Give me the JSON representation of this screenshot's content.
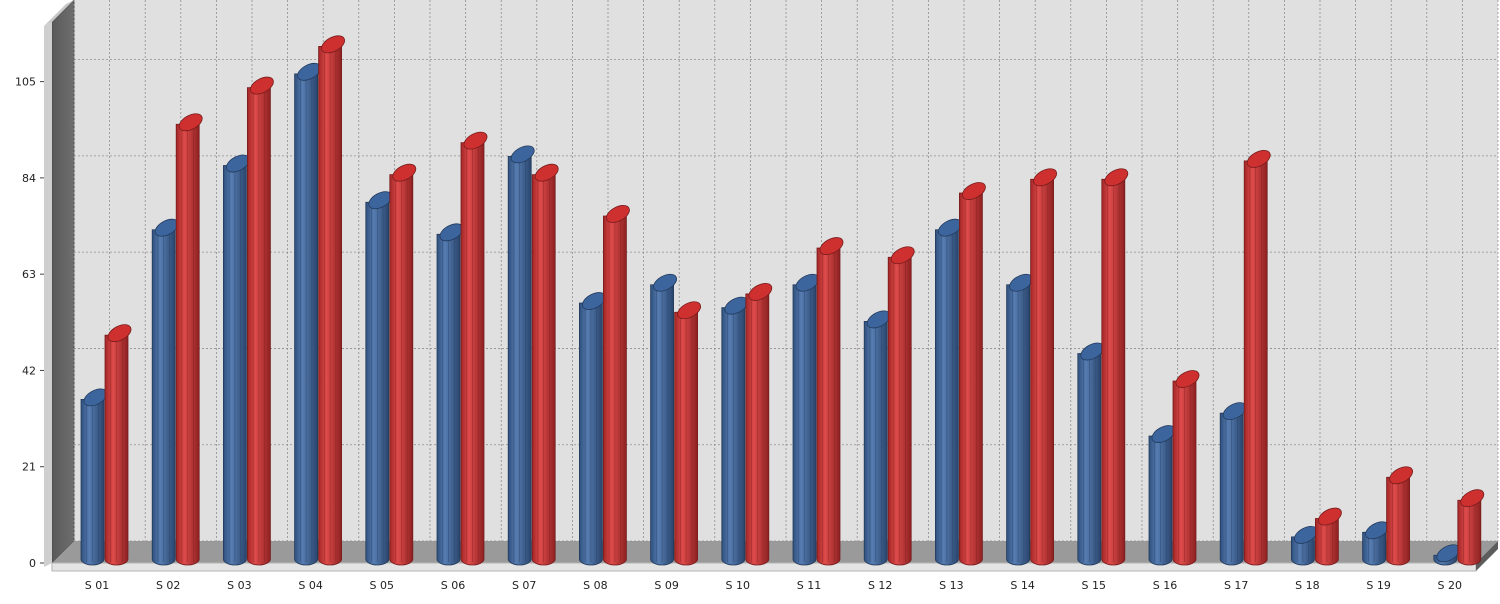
{
  "chart_data": {
    "type": "bar",
    "style": "3d-cylinder",
    "categories": [
      "S 01",
      "S 02",
      "S 03",
      "S 04",
      "S 05",
      "S 06",
      "S 07",
      "S 08",
      "S 09",
      "S 10",
      "S 11",
      "S 12",
      "S 13",
      "S 14",
      "S 15",
      "S 16",
      "S 17",
      "S 18",
      "S 19",
      "S 20"
    ],
    "series": [
      {
        "color": "#3f6aa6",
        "values": [
          37,
          74,
          88,
          108,
          80,
          73,
          90,
          58,
          62,
          57,
          62,
          54,
          74,
          62,
          47,
          29,
          34,
          7,
          8,
          3
        ]
      },
      {
        "color": "#d93232",
        "values": [
          51,
          97,
          105,
          114,
          86,
          93,
          86,
          77,
          56,
          60,
          70,
          68,
          82,
          85,
          85,
          41,
          89,
          11,
          20,
          15
        ]
      }
    ],
    "yticks": [
      0,
      21,
      42,
      63,
      84,
      105
    ],
    "ylim": [
      0,
      118
    ],
    "grid": true,
    "legend": "none",
    "title": "",
    "xlabel": "",
    "ylabel": ""
  }
}
